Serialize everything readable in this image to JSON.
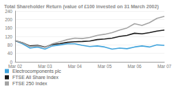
{
  "chart_data": {
    "type": "line",
    "title": "Total Shareholder Return (value of £100 invested on 31 March 2002)",
    "categories": [
      "Mar 02",
      null,
      null,
      null,
      "Mar 03",
      null,
      null,
      null,
      "Mar 04",
      null,
      null,
      null,
      "Mar 05",
      null,
      null,
      null,
      "Mar 06",
      null,
      null,
      null,
      "Mar 07"
    ],
    "series": [
      {
        "name": "Electrocomponents plc",
        "color": "#3fa3dc",
        "values": [
          100,
          85,
          65,
          70,
          60,
          75,
          80,
          85,
          85,
          78,
          72,
          75,
          70,
          60,
          65,
          62,
          70,
          75,
          70,
          80,
          78
        ]
      },
      {
        "name": "FTSE All Share Index",
        "color": "#1a1a1a",
        "values": [
          100,
          90,
          75,
          78,
          70,
          82,
          86,
          92,
          95,
          96,
          98,
          105,
          108,
          112,
          120,
          125,
          135,
          132,
          138,
          145,
          150
        ]
      },
      {
        "name": "FTSE 250 Index",
        "color": "#a3a3a3",
        "values": [
          100,
          90,
          72,
          75,
          68,
          85,
          95,
          105,
          112,
          110,
          115,
          125,
          130,
          138,
          150,
          160,
          180,
          172,
          185,
          205,
          215
        ]
      }
    ],
    "ylim": [
      0,
      240
    ],
    "yticks": [
      0,
      40,
      80,
      120,
      160,
      200,
      240
    ],
    "grid": true,
    "legend": "bottom-left",
    "marker": "none",
    "line_style": "solid"
  }
}
